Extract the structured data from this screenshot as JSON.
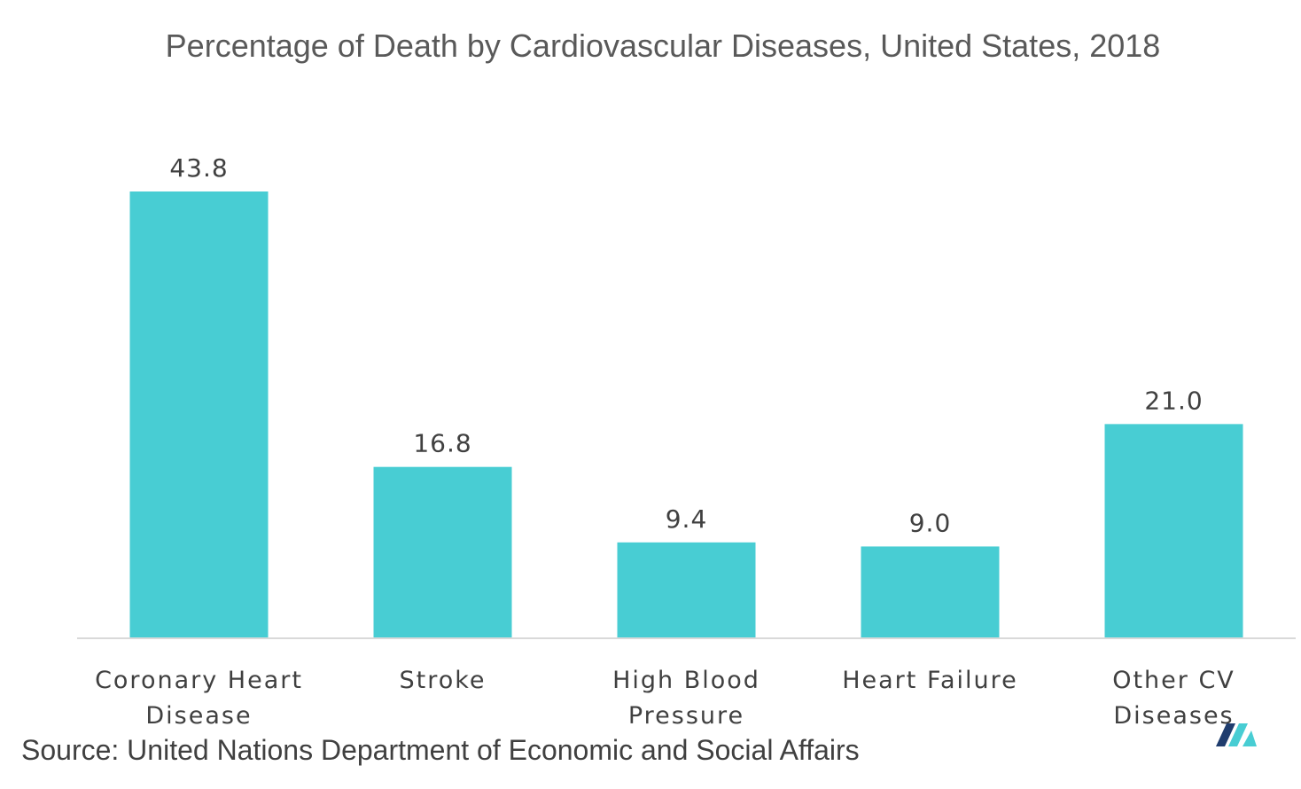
{
  "chart_data": {
    "type": "bar",
    "title": "Percentage of Death by Cardiovascular Diseases, United States, 2018",
    "categories": [
      [
        "Coronary Heart",
        "Disease"
      ],
      [
        "Stroke"
      ],
      [
        "High Blood",
        "Pressure"
      ],
      [
        "Heart Failure"
      ],
      [
        "Other CV",
        "Diseases"
      ]
    ],
    "values": [
      43.8,
      16.8,
      9.4,
      9.0,
      21.0
    ],
    "value_labels": [
      "43.8",
      "16.8",
      "9.4",
      "9.0",
      "21.0"
    ],
    "xlabel": "",
    "ylabel": "",
    "ylim": [
      0,
      43.8
    ],
    "grid": false,
    "legend": "none",
    "bar_color": "#48CDD3",
    "axis_color": "#D9D9D9"
  },
  "source": "Source: United Nations Department of Economic and Social Affairs",
  "logo": {
    "icon": "mordor-intelligence-logo",
    "colors": [
      "#1F3D6E",
      "#48CDD3"
    ]
  }
}
